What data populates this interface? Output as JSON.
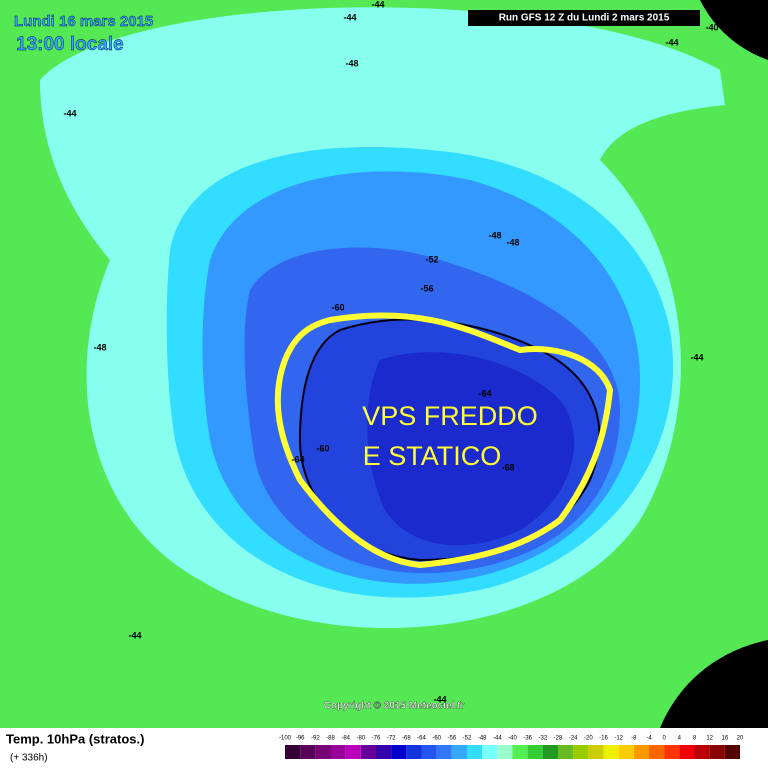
{
  "header": {
    "date": "Lundi 16 mars 2015",
    "time": "13:00 locale",
    "run": "Run GFS 12 Z du Lundi 2 mars 2015"
  },
  "map": {
    "contour_labels": [
      "-44",
      "-44",
      "-44",
      "-44",
      "-44",
      "-44",
      "-44",
      "-48",
      "-48",
      "-48",
      "-48",
      "-52",
      "-56",
      "-60",
      "-60",
      "-64",
      "-64",
      "-68",
      "-40",
      "-40"
    ],
    "annotation": [
      "VPS FREDDO",
      "E STATICO"
    ],
    "copyright": "Copyright © 2015 Meteociel.fr"
  },
  "legend": {
    "title": "Temp. 10hPa (stratos.)",
    "subtitle": "(+ 336h)",
    "ticks": [
      "-100",
      "-96",
      "-92",
      "-88",
      "-84",
      "-80",
      "-76",
      "-72",
      "-68",
      "-64",
      "-60",
      "-56",
      "-52",
      "-48",
      "-44",
      "-40",
      "-36",
      "-32",
      "-28",
      "-24",
      "-20",
      "-16",
      "-12",
      "-8",
      "-4",
      "0",
      "4",
      "8",
      "12",
      "16",
      "20"
    ],
    "colors": [
      "#330033",
      "#550055",
      "#770077",
      "#990099",
      "#bb00bb",
      "#660099",
      "#3300aa",
      "#0000cc",
      "#1133dd",
      "#2255ee",
      "#3377ff",
      "#33aaff",
      "#33ddff",
      "#77ffff",
      "#99ffcc",
      "#55ee55",
      "#33cc33",
      "#229922",
      "#66bb22",
      "#99cc00",
      "#cccc00",
      "#eeee00",
      "#ffcc00",
      "#ff9900",
      "#ff6600",
      "#ff3300",
      "#ee0000",
      "#bb0000",
      "#880000",
      "#550000"
    ]
  }
}
